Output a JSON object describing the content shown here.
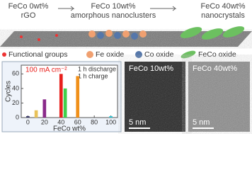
{
  "header": {
    "stages": [
      {
        "name": "FeCo 0wt%",
        "phase": "rGO"
      },
      {
        "name": "FeCo 10wt%",
        "phase": "amorphous nanoclusters"
      },
      {
        "name": "FeCo 40wt%",
        "phase": "nanocrystals"
      }
    ]
  },
  "legend": [
    "Functional groups",
    "Fe oxide",
    "Co oxide",
    "FeCo oxide"
  ],
  "chart_data": {
    "type": "bar",
    "x_label": "FeCo wt%",
    "y_label": "Cycles",
    "annotations": [
      "100 mA cm⁻²",
      "1 h discharge",
      "1 h charge"
    ],
    "x": [
      0,
      10,
      20,
      40,
      45,
      60,
      100
    ],
    "values": [
      2,
      10,
      25,
      60,
      40,
      57,
      2
    ],
    "colors": [
      "#3b3b6b",
      "#e8c25a",
      "#8a2a8a",
      "#e8201c",
      "#3fd04a",
      "#f0901a",
      "#35c8d8"
    ],
    "xlim": [
      -8,
      108
    ],
    "xticks": [
      0,
      20,
      40,
      60,
      80,
      100
    ],
    "ylim": [
      0,
      72
    ],
    "yticks": [
      0,
      20,
      40,
      60
    ]
  },
  "images": [
    {
      "label": "FeCo 10wt%",
      "scale": "5 nm"
    },
    {
      "label": "FeCo 40wt%",
      "scale": "5 nm"
    }
  ]
}
